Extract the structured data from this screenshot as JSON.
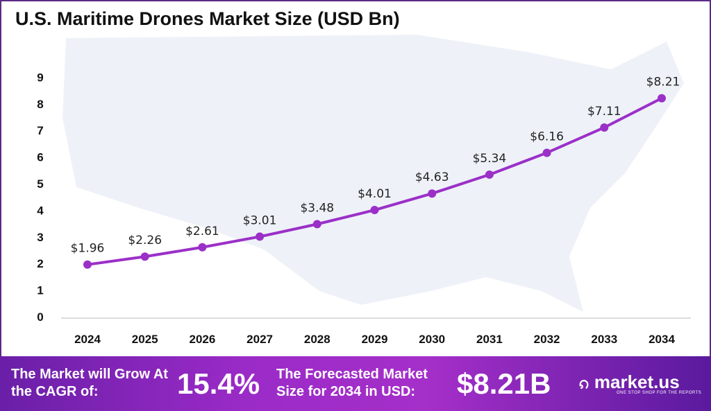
{
  "chart_data": {
    "type": "line",
    "title": "U.S. Maritime Drones Market Size (USD Bn)",
    "categories": [
      "2024",
      "2025",
      "2026",
      "2027",
      "2028",
      "2029",
      "2030",
      "2031",
      "2032",
      "2033",
      "2034"
    ],
    "values": [
      1.96,
      2.26,
      2.61,
      3.01,
      3.48,
      4.01,
      4.63,
      5.34,
      6.16,
      7.11,
      8.21
    ],
    "data_labels": [
      "$1.96",
      "$2.26",
      "$2.61",
      "$3.01",
      "$3.48",
      "$4.01",
      "$4.63",
      "$5.34",
      "$6.16",
      "$7.11",
      "$8.21"
    ],
    "y_ticks": [
      "0",
      "1",
      "2",
      "3",
      "4",
      "5",
      "6",
      "7",
      "8",
      "9"
    ],
    "ylim": [
      0,
      9
    ],
    "grid": false,
    "line_color": "#9b30c8"
  },
  "footer": {
    "cagr_label": "The Market will Grow At the CAGR of:",
    "cagr_value": "15.4%",
    "forecast_label": "The Forecasted Market Size for 2034 in USD:",
    "forecast_value": "$8.21B",
    "brand": "market.us",
    "tagline": "ONE STOP SHOP FOR THE REPORTS"
  }
}
